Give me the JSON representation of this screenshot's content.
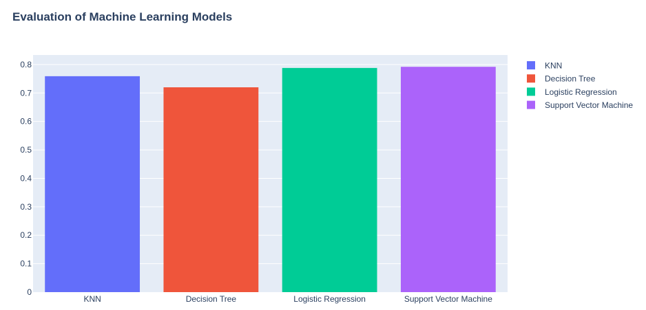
{
  "chart_data": {
    "type": "bar",
    "title": "Evaluation of Machine Learning Models",
    "xlabel": "",
    "ylabel": "",
    "categories": [
      "KNN",
      "Decision Tree",
      "Logistic Regression",
      "Support Vector Machine"
    ],
    "series": [
      {
        "name": "KNN",
        "category": "KNN",
        "value": 0.759,
        "color": "#636efa"
      },
      {
        "name": "Decision Tree",
        "category": "Decision Tree",
        "value": 0.72,
        "color": "#ef553b"
      },
      {
        "name": "Logistic Regression",
        "category": "Logistic Regression",
        "value": 0.788,
        "color": "#00cc96"
      },
      {
        "name": "Support Vector Machine",
        "category": "Support Vector Machine",
        "value": 0.792,
        "color": "#ab63fa"
      }
    ],
    "ylim": [
      0,
      0.8336
    ],
    "yticks": [
      0,
      0.1,
      0.2,
      0.3,
      0.4,
      0.5,
      0.6,
      0.7,
      0.8
    ],
    "ytick_labels": [
      "0",
      "0.1",
      "0.2",
      "0.3",
      "0.4",
      "0.5",
      "0.6",
      "0.7",
      "0.8"
    ],
    "grid": true,
    "legend_placement": "top-right",
    "background_color": "#e5ecf6",
    "grid_color": "#ffffff"
  }
}
